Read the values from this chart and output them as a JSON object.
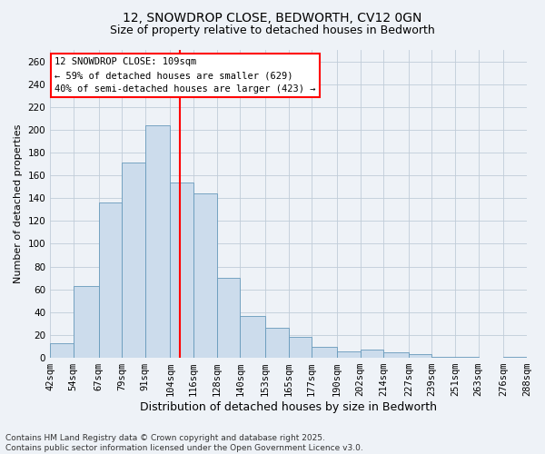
{
  "title1": "12, SNOWDROP CLOSE, BEDWORTH, CV12 0GN",
  "title2": "Size of property relative to detached houses in Bedworth",
  "xlabel": "Distribution of detached houses by size in Bedworth",
  "ylabel": "Number of detached properties",
  "bin_edges": [
    42,
    54,
    67,
    79,
    91,
    104,
    116,
    128,
    140,
    153,
    165,
    177,
    190,
    202,
    214,
    227,
    239,
    251,
    263,
    276,
    288
  ],
  "bar_heights": [
    13,
    63,
    136,
    171,
    204,
    154,
    144,
    70,
    37,
    26,
    18,
    10,
    6,
    7,
    5,
    3,
    1,
    1,
    0,
    1
  ],
  "bar_color": "#ccdcec",
  "bar_edge_color": "#6699bb",
  "vline_x": 109,
  "vline_color": "red",
  "ylim": [
    0,
    270
  ],
  "yticks": [
    0,
    20,
    40,
    60,
    80,
    100,
    120,
    140,
    160,
    180,
    200,
    220,
    240,
    260
  ],
  "annotation_title": "12 SNOWDROP CLOSE: 109sqm",
  "annotation_line1": "← 59% of detached houses are smaller (629)",
  "annotation_line2": "40% of semi-detached houses are larger (423) →",
  "footer1": "Contains HM Land Registry data © Crown copyright and database right 2025.",
  "footer2": "Contains public sector information licensed under the Open Government Licence v3.0.",
  "bg_color": "#eef2f7",
  "grid_color": "#c0ccd8",
  "title_fontsize": 10,
  "subtitle_fontsize": 9,
  "xlabel_fontsize": 9,
  "ylabel_fontsize": 8,
  "tick_fontsize": 7.5,
  "footer_fontsize": 6.5,
  "annotation_fontsize": 7.5
}
